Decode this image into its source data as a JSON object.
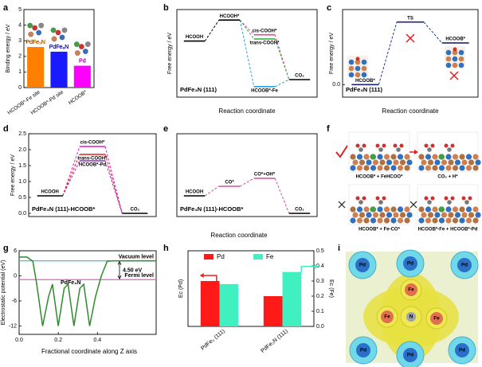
{
  "chart_data": [
    {
      "type": "bar",
      "panel": "a",
      "ylabel": "Binding energy / eV",
      "categories": [
        "HCOOB*-Fe site",
        "HCOOB*-Pd site",
        "HCOOB*"
      ],
      "values": [
        2.6,
        2.3,
        1.4
      ],
      "colors": [
        "#ff8000",
        "#1a1aff",
        "#ff00ff"
      ],
      "bar_labels": [
        "PdFe₃N",
        "PdFe₃N",
        "Pd"
      ],
      "ylim": [
        0,
        5
      ],
      "yticks": [
        0,
        1,
        2,
        3,
        4,
        5
      ]
    },
    {
      "type": "energy",
      "panel": "b",
      "ylabel": "Free energy / eV",
      "xlabel": "Reaction coordinate",
      "inset_label": "PdFe₃N (111)",
      "ylim": [
        -0.25,
        1.0
      ],
      "levels": [
        {
          "label": "HCOOH",
          "x": 0,
          "value": 0.55,
          "color": "#000000"
        },
        {
          "label": "HCOOH*",
          "x": 1,
          "value": 0.85,
          "color": "#000000"
        },
        {
          "label": "cis-COOH*",
          "x": 2,
          "value": 0.64,
          "color": "#e0479e"
        },
        {
          "label": "trans-COOH*",
          "x": 2,
          "value": 0.58,
          "color": "#3cb043"
        },
        {
          "label": "HCOOB*-Fe",
          "x": 2,
          "value": -0.1,
          "color": "#29a3d6"
        },
        {
          "label": "CO₂",
          "x": 3,
          "value": 0.0,
          "color": "#000000"
        }
      ],
      "paths": [
        {
          "color": "#000000",
          "levels": [
            0,
            1
          ]
        },
        {
          "color": "#e0479e",
          "levels": [
            1,
            2,
            5
          ]
        },
        {
          "color": "#3cb043",
          "levels": [
            1,
            3,
            5
          ]
        },
        {
          "color": "#29a3d6",
          "levels": [
            1,
            4,
            5
          ]
        }
      ]
    },
    {
      "type": "energy",
      "panel": "c",
      "ylabel": "Free energy / eV",
      "xlabel": "Reaction coordinate",
      "inset_label": "PdFe₃N (111)",
      "ylim": [
        -0.15,
        0.9
      ],
      "yticks": [
        {
          "value": 0,
          "label": "0.0"
        }
      ],
      "levels": [
        {
          "label": "HCOOB*",
          "x": 0,
          "value": 0.0,
          "color": "#1a237e"
        },
        {
          "label": "TS",
          "x": 1,
          "value": 0.75,
          "color": "#1a237e"
        },
        {
          "label": "HCOOB*",
          "x": 2,
          "value": 0.5,
          "color": "#1a237e"
        }
      ],
      "paths": [
        {
          "color": "#2233aa",
          "levels": [
            0,
            1,
            2
          ]
        }
      ]
    },
    {
      "type": "energy",
      "panel": "d",
      "ylabel": "Free energy / eV",
      "xlabel": "Reaction coordinate",
      "inset_label": "PdFe₃N (111)-HCOOB*",
      "ylim": [
        -0.1,
        2.5
      ],
      "yticks": [
        {
          "value": 0,
          "label": "0.0"
        },
        0.5,
        {
          "value": 1,
          "label": "1.0"
        },
        1.5,
        {
          "value": 2,
          "label": "2.0"
        },
        2.5
      ],
      "levels": [
        {
          "label": "HCOOH",
          "x": 0,
          "value": 0.55,
          "color": "#000000"
        },
        {
          "label": "cis-COOH*",
          "x": 1,
          "value": 2.1,
          "color": "#e020c0"
        },
        {
          "label": "trans-COOH*",
          "x": 1,
          "value": 1.85,
          "color": "#e02020"
        },
        {
          "label": "HCOOB*-Pd",
          "x": 1,
          "value": 1.65,
          "color": "#9030c0"
        },
        {
          "label": "CO₂",
          "x": 2,
          "value": 0.0,
          "color": "#000000"
        }
      ],
      "paths": [
        {
          "color": "#e020c0",
          "levels": [
            0,
            1,
            4
          ]
        },
        {
          "color": "#e02020",
          "levels": [
            0,
            2,
            4
          ]
        },
        {
          "color": "#9030c0",
          "levels": [
            0,
            3,
            4
          ]
        }
      ]
    },
    {
      "type": "energy",
      "panel": "e",
      "inset_label": "PdFe₃N (111)-HCOOB*",
      "ylim": [
        -0.1,
        2.5
      ],
      "levels": [
        {
          "label": "HCOOH",
          "x": 0,
          "value": 0.55,
          "color": "#000000"
        },
        {
          "label": "CO*",
          "x": 1,
          "value": 0.85,
          "color": "#d0509a"
        },
        {
          "label": "CO*+OH*",
          "x": 2,
          "value": 1.1,
          "color": "#d0509a"
        },
        {
          "label": "CO₂",
          "x": 3,
          "value": 0.0,
          "color": "#000000"
        }
      ],
      "paths": [
        {
          "color": "#d0509a",
          "levels": [
            0,
            1,
            2,
            3
          ]
        }
      ]
    },
    {
      "type": "line",
      "panel": "g",
      "ylabel": "Electrostatic potential (eV)",
      "xlabel": "Fractional coordinate along Z axis",
      "x": [
        0,
        0.04,
        0.07,
        0.09,
        0.12,
        0.15,
        0.17,
        0.2,
        0.23,
        0.25,
        0.28,
        0.31,
        0.33,
        0.36,
        0.39,
        0.42,
        0.45,
        0.48,
        0.52,
        0.6,
        0.7
      ],
      "series": [
        {
          "name": "PdFe₃N",
          "color": "#2e8b2e",
          "values": [
            4.5,
            4.5,
            3.5,
            -2,
            -12,
            -5,
            -2,
            -12,
            -3,
            -2,
            -12,
            -3,
            -2,
            -12,
            -5,
            0,
            3.5,
            3.6,
            3.6,
            3.6,
            3.6
          ]
        }
      ],
      "reference_lines": [
        {
          "name": "Vacuum level",
          "value": 3.6,
          "color": "#40c0e0"
        },
        {
          "name": "Fermi level",
          "value": -0.9,
          "color": "#e060c0"
        }
      ],
      "annotation": "4.50 eV",
      "xlim": [
        0,
        0.7
      ],
      "xticks": [
        {
          "value": 0,
          "label": "0.0"
        },
        0.2,
        0.4
      ],
      "ylim": [
        -14,
        6
      ],
      "yticks": [
        6,
        0,
        -6,
        -12
      ]
    },
    {
      "type": "grouped-bar",
      "panel": "h",
      "ylabel": "Ec (Pd)",
      "y2label": "Ec (Fe)",
      "categories": [
        "PdFe₃ (111)",
        "PdFe₃N (111)"
      ],
      "series": [
        {
          "name": "Pd",
          "color": "#ff1a1a",
          "axis": "y",
          "values": [
            0.3,
            0.2
          ]
        },
        {
          "name": "Fe",
          "color": "#40f0c0",
          "axis": "y2",
          "values": [
            0.28,
            0.36
          ]
        }
      ],
      "ylim": [
        0,
        0.5
      ],
      "y2lim": [
        0,
        0.5
      ],
      "y2ticks": [
        {
          "value": 0,
          "label": "0.0"
        },
        0.1,
        0.2,
        0.3,
        0.4,
        0.5
      ]
    }
  ],
  "figure_f": {
    "panel": "f",
    "captions": [
      "HCOOB* + FeHCOO*",
      "CO₂ + H*",
      "HCOOB* + Fe-CO*",
      "HCOOB*-Fe + HCOOB*-Pd"
    ]
  },
  "figure_i": {
    "panel": "i",
    "atoms": [
      "Pd",
      "Pd",
      "Pd",
      "Fe",
      "Fe",
      "N",
      "Fe",
      "Pd",
      "Pd",
      "Pd"
    ]
  }
}
